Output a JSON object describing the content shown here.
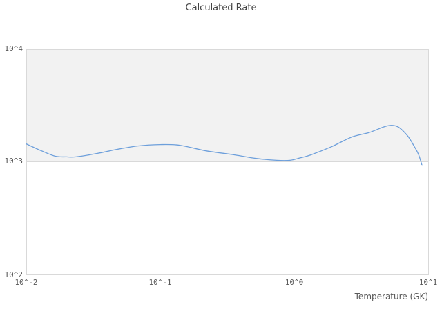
{
  "chart": {
    "title": "Calculated Rate",
    "colors": {
      "line": "#6d9fdb",
      "band_fill": "#f2f2f2",
      "border": "#d9d9d9",
      "title_text": "#444444",
      "tick_text": "#595959"
    },
    "y_axis": {
      "ticks": [
        "10^4",
        "10^3",
        "10^2"
      ]
    },
    "x_axis": {
      "label": "Temperature (GK)",
      "ticks": [
        "10^-2",
        "10^-1",
        "10^0",
        "10^1"
      ]
    }
  },
  "chart_data": {
    "type": "line",
    "title": "Calculated Rate",
    "xlabel": "Temperature (GK)",
    "ylabel": "",
    "x_scale": "log",
    "y_scale": "log",
    "xlim": [
      0.01,
      10
    ],
    "ylim": [
      100,
      10000
    ],
    "grid": "major-horizontal-band",
    "legend": "none",
    "series": [
      {
        "name": "Calculated Rate",
        "color": "#6d9fdb",
        "x": [
          0.01,
          0.013,
          0.0165,
          0.02,
          0.0235,
          0.034,
          0.048,
          0.068,
          0.1,
          0.14,
          0.22,
          0.36,
          0.52,
          0.74,
          0.93,
          1.1,
          1.33,
          1.9,
          2.7,
          3.65,
          4.9,
          5.9,
          7.0,
          7.9,
          8.5,
          9.0
        ],
        "y": [
          1440,
          1250,
          1120,
          1105,
          1105,
          1185,
          1290,
          1380,
          1420,
          1400,
          1250,
          1150,
          1070,
          1030,
          1030,
          1080,
          1150,
          1360,
          1660,
          1820,
          2075,
          2050,
          1705,
          1360,
          1150,
          930
        ]
      }
    ]
  }
}
